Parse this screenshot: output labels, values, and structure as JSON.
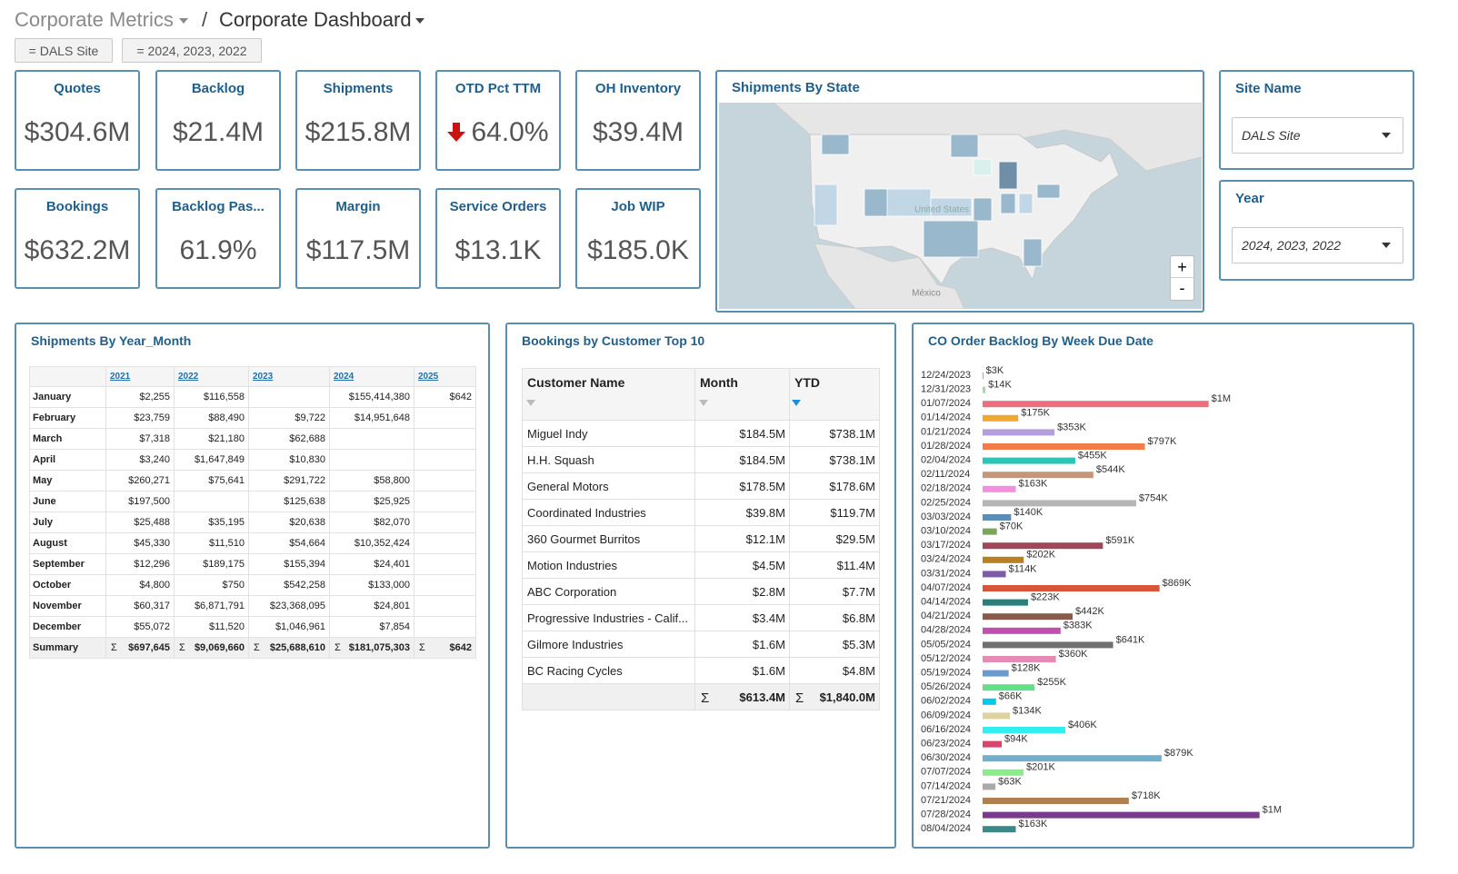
{
  "header": {
    "parent": "Corporate Metrics",
    "separator": "/",
    "title": "Corporate Dashboard",
    "filters": [
      "= DALS Site",
      "= 2024, 2023, 2022"
    ]
  },
  "kpis": [
    {
      "title": "Quotes",
      "value": "$304.6M"
    },
    {
      "title": "Backlog",
      "value": "$21.4M"
    },
    {
      "title": "Shipments",
      "value": "$215.8M"
    },
    {
      "title": "OTD Pct TTM",
      "value": "64.0%",
      "trend": "down"
    },
    {
      "title": "OH Inventory",
      "value": "$39.4M"
    },
    {
      "title": "Bookings",
      "value": "$632.2M"
    },
    {
      "title": "Backlog Pas...",
      "value": "61.9%"
    },
    {
      "title": "Margin",
      "value": "$117.5M"
    },
    {
      "title": "Service Orders",
      "value": "$13.1K"
    },
    {
      "title": "Job WIP",
      "value": "$185.0K"
    }
  ],
  "map": {
    "title": "Shipments By State",
    "labels": [
      "United States",
      "México"
    ],
    "zoom": [
      "+",
      "-"
    ]
  },
  "selectors": [
    {
      "label": "Site Name",
      "value": "DALS Site"
    },
    {
      "label": "Year",
      "value": "2024, 2023, 2022"
    }
  ],
  "shipments_table": {
    "title": "Shipments By Year_Month",
    "columns": [
      "2021",
      "2022",
      "2023",
      "2024",
      "2025"
    ],
    "summary_symbol": "Σ",
    "rows": [
      {
        "label": "January",
        "cells": [
          "$2,255",
          "$116,558",
          null,
          "$155,414,380",
          "$642"
        ]
      },
      {
        "label": "February",
        "cells": [
          "$23,759",
          "$88,490",
          "$9,722",
          "$14,951,648",
          null
        ]
      },
      {
        "label": "March",
        "cells": [
          "$7,318",
          "$21,180",
          "$62,688",
          null,
          null
        ]
      },
      {
        "label": "April",
        "cells": [
          "$3,240",
          "$1,647,849",
          "$10,830",
          null,
          null
        ]
      },
      {
        "label": "May",
        "cells": [
          "$260,271",
          "$75,641",
          "$291,722",
          "$58,800",
          null
        ]
      },
      {
        "label": "June",
        "cells": [
          "$197,500",
          null,
          "$125,638",
          "$25,925",
          null
        ]
      },
      {
        "label": "July",
        "cells": [
          "$25,488",
          "$35,195",
          "$20,638",
          "$82,070",
          null
        ]
      },
      {
        "label": "August",
        "cells": [
          "$45,330",
          "$11,510",
          "$54,664",
          "$10,352,424",
          null
        ]
      },
      {
        "label": "September",
        "cells": [
          "$12,296",
          "$189,175",
          "$155,394",
          "$24,401",
          null
        ]
      },
      {
        "label": "October",
        "cells": [
          "$4,800",
          "$750",
          "$542,258",
          "$133,000",
          null
        ]
      },
      {
        "label": "November",
        "cells": [
          "$60,317",
          "$6,871,791",
          "$23,368,095",
          "$24,801",
          null
        ]
      },
      {
        "label": "December",
        "cells": [
          "$55,072",
          "$11,520",
          "$1,046,961",
          "$7,854",
          null
        ]
      }
    ],
    "summary": {
      "label": "Summary",
      "cells": [
        "$697,645",
        "$9,069,660",
        "$25,688,610",
        "$181,075,303",
        "$642"
      ]
    }
  },
  "bookings_table": {
    "title": "Bookings by Customer Top 10",
    "columns": [
      "Customer Name",
      "Month",
      "YTD"
    ],
    "summary_symbol": "Σ",
    "rows": [
      [
        "Miguel Indy",
        "$184.5M",
        "$738.1M"
      ],
      [
        "H.H. Squash",
        "$184.5M",
        "$738.1M"
      ],
      [
        "General Motors",
        "$178.5M",
        "$178.6M"
      ],
      [
        "Coordinated Industries",
        "$39.8M",
        "$119.7M"
      ],
      [
        "360 Gourmet Burritos",
        "$12.1M",
        "$29.5M"
      ],
      [
        "Motion Industries",
        "$4.5M",
        "$11.4M"
      ],
      [
        "ABC Corporation",
        "$2.8M",
        "$7.7M"
      ],
      [
        "Progressive Industries - Calif...",
        "$3.4M",
        "$6.8M"
      ],
      [
        "Gilmore Industries",
        "$1.6M",
        "$5.3M"
      ],
      [
        "BC Racing Cycles",
        "$1.6M",
        "$4.8M"
      ]
    ],
    "summary": [
      "$613.4M",
      "$1,840.0M"
    ]
  },
  "chart_data": {
    "type": "bar",
    "orientation": "horizontal",
    "title": "CO Order Backlog By Week Due Date",
    "categories": [
      "12/24/2023",
      "12/31/2023",
      "01/07/2024",
      "01/14/2024",
      "01/21/2024",
      "01/28/2024",
      "02/04/2024",
      "02/11/2024",
      "02/18/2024",
      "02/25/2024",
      "03/03/2024",
      "03/10/2024",
      "03/17/2024",
      "03/24/2024",
      "03/31/2024",
      "04/07/2024",
      "04/14/2024",
      "04/21/2024",
      "04/28/2024",
      "05/05/2024",
      "05/12/2024",
      "05/19/2024",
      "05/26/2024",
      "06/02/2024",
      "06/09/2024",
      "06/16/2024",
      "06/23/2024",
      "06/30/2024",
      "07/07/2024",
      "07/14/2024",
      "07/21/2024",
      "07/28/2024",
      "08/04/2024"
    ],
    "values": [
      3000,
      14000,
      1110000,
      175000,
      353000,
      797000,
      455000,
      544000,
      163000,
      754000,
      140000,
      70000,
      591000,
      202000,
      114000,
      869000,
      223000,
      442000,
      383000,
      641000,
      360000,
      128000,
      255000,
      66000,
      134000,
      406000,
      94000,
      879000,
      201000,
      63000,
      718000,
      1360000,
      163000
    ],
    "value_labels": [
      "$3K",
      "$14K",
      "$1M",
      "$175K",
      "$353K",
      "$797K",
      "$455K",
      "$544K",
      "$163K",
      "$754K",
      "$140K",
      "$70K",
      "$591K",
      "$202K",
      "$114K",
      "$869K",
      "$223K",
      "$442K",
      "$383K",
      "$641K",
      "$360K",
      "$128K",
      "$255K",
      "$66K",
      "$134K",
      "$406K",
      "$94K",
      "$879K",
      "$201K",
      "$63K",
      "$718K",
      "$1M",
      "$163K"
    ],
    "colors": [
      "#9aa8b0",
      "#a8d8a0",
      "#e8707f",
      "#f0a830",
      "#b39ddb",
      "#f47c48",
      "#2ec4b6",
      "#c8957a",
      "#f48fdd",
      "#b5b5b5",
      "#5b8db8",
      "#7aa55a",
      "#a0485a",
      "#b8801f",
      "#7d5ba6",
      "#d9553a",
      "#2a7f7a",
      "#8a5a4a",
      "#c050b0",
      "#707070",
      "#e88ab8",
      "#6a9ad0",
      "#66dd88",
      "#00c8e8",
      "#ddd2a0",
      "#33eeee",
      "#d6456e",
      "#72afc8",
      "#88ee88",
      "#aaaaaa",
      "#b08050",
      "#7a3a90",
      "#3a8a8a"
    ],
    "xlim": [
      0,
      1500000
    ]
  }
}
